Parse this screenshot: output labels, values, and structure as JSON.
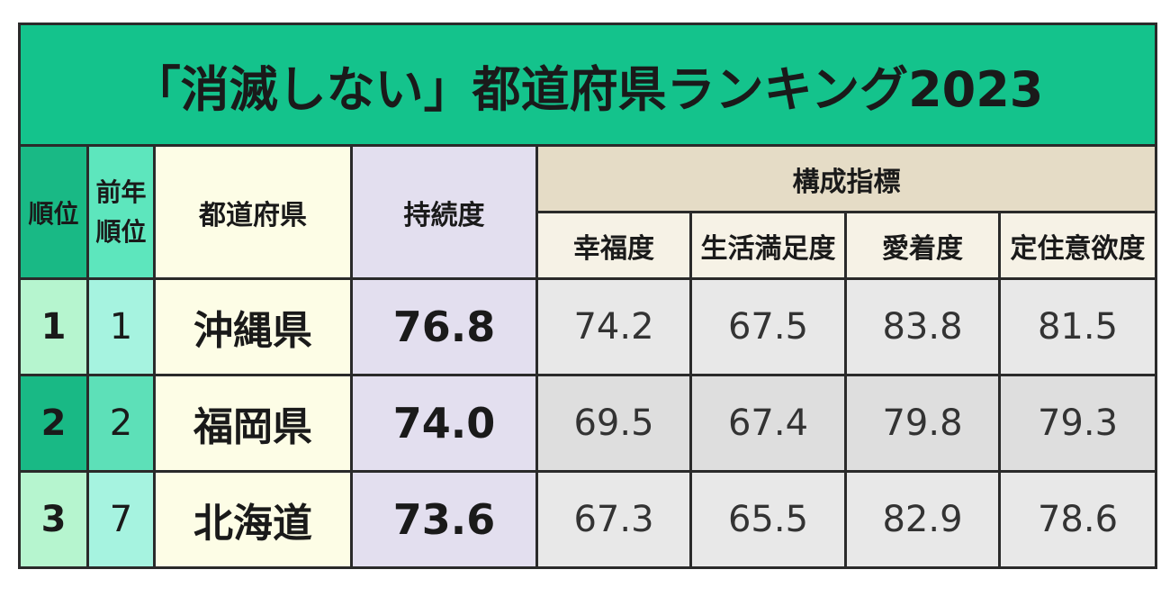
{
  "title": "「消滅しない」都道府県ランキング2023",
  "header": {
    "rank": "順位",
    "prev_rank": "前年順位",
    "prefecture": "都道府県",
    "sustainability": "持続度",
    "components": "構成指標",
    "component_names": [
      "幸福度",
      "生活満足度",
      "愛着度",
      "定住意欲度"
    ]
  },
  "rows": [
    {
      "rank": "1",
      "prev_rank": "1",
      "prefecture": "沖縄県",
      "sustainability": "76.8",
      "components": [
        "74.2",
        "67.5",
        "83.8",
        "81.5"
      ]
    },
    {
      "rank": "2",
      "prev_rank": "2",
      "prefecture": "福岡県",
      "sustainability": "74.0",
      "components": [
        "69.5",
        "67.4",
        "79.8",
        "79.3"
      ]
    },
    {
      "rank": "3",
      "prev_rank": "7",
      "prefecture": "北海道",
      "sustainability": "73.6",
      "components": [
        "67.3",
        "65.5",
        "82.9",
        "78.6"
      ]
    }
  ]
}
